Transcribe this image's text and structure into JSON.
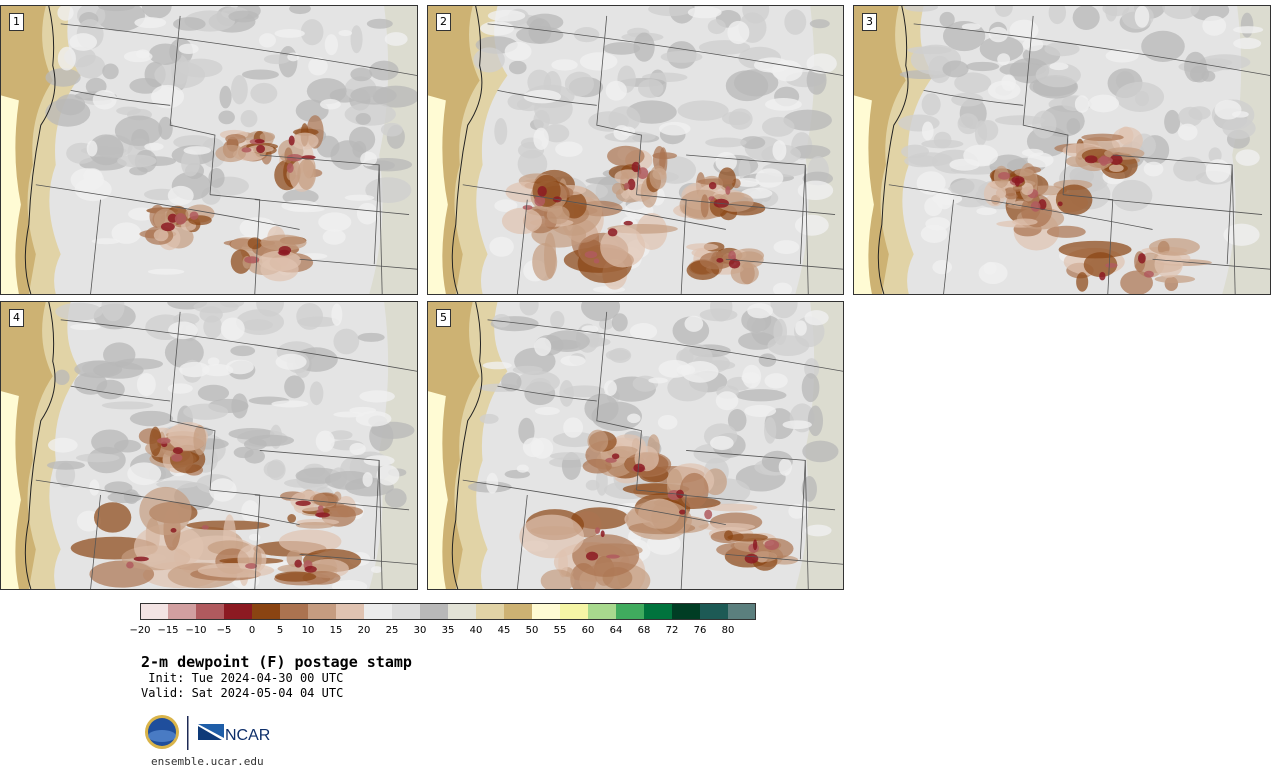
{
  "panels": [
    {
      "number": "1"
    },
    {
      "number": "2"
    },
    {
      "number": "3"
    },
    {
      "number": "4"
    },
    {
      "number": "5"
    }
  ],
  "colorbar": {
    "colors": [
      "#f3e4e4",
      "#d19fa0",
      "#b05a5e",
      "#8c1a22",
      "#8a4412",
      "#ab7350",
      "#c59c80",
      "#e0c3b1",
      "#ececec",
      "#dcdcdc",
      "#b8b8b8",
      "#e2e2d6",
      "#e1d3a6",
      "#cdb273",
      "#fffbd4",
      "#f5f5a6",
      "#a8d98e",
      "#40ab5e",
      "#00733d",
      "#003d24",
      "#1d5a55",
      "#5b7f7e"
    ],
    "ticks": [
      "−20",
      "−15",
      "−10",
      "−5",
      "0",
      "5",
      "10",
      "15",
      "20",
      "25",
      "30",
      "35",
      "40",
      "45",
      "50",
      "55",
      "60",
      "64",
      "68",
      "72",
      "76",
      "80"
    ]
  },
  "title": "2-m dewpoint (F) postage stamp",
  "init_line": " Init: Tue 2024-04-30 00 UTC",
  "valid_line": "Valid: Sat 2024-05-04 04 UTC",
  "logos": {
    "nsf": "NSF",
    "ncar": "NCAR"
  },
  "site": "ensemble.ucar.edu"
}
